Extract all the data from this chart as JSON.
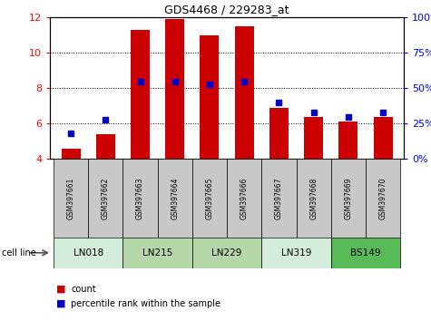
{
  "title": "GDS4468 / 229283_at",
  "samples": [
    "GSM397661",
    "GSM397662",
    "GSM397663",
    "GSM397664",
    "GSM397665",
    "GSM397666",
    "GSM397667",
    "GSM397668",
    "GSM397669",
    "GSM397670"
  ],
  "count_values": [
    4.6,
    5.4,
    11.3,
    11.9,
    11.0,
    11.5,
    6.9,
    6.4,
    6.1,
    6.4
  ],
  "percentile_values": [
    18,
    28,
    55,
    55,
    53,
    55,
    40,
    33,
    30,
    33
  ],
  "ylim_left": [
    4,
    12
  ],
  "ylim_right": [
    0,
    100
  ],
  "yticks_left": [
    4,
    6,
    8,
    10,
    12
  ],
  "yticks_right": [
    0,
    25,
    50,
    75,
    100
  ],
  "ytick_labels_right": [
    "0%",
    "25%",
    "50%",
    "75%",
    "100%"
  ],
  "cell_lines": [
    {
      "name": "LN018",
      "start": 0,
      "end": 1,
      "color": "#d4edda"
    },
    {
      "name": "LN215",
      "start": 2,
      "end": 3,
      "color": "#b6d7a8"
    },
    {
      "name": "LN229",
      "start": 4,
      "end": 5,
      "color": "#b6d7a8"
    },
    {
      "name": "LN319",
      "start": 6,
      "end": 7,
      "color": "#d4edda"
    },
    {
      "name": "BS149",
      "start": 8,
      "end": 9,
      "color": "#57bb57"
    }
  ],
  "bar_color": "#cc0000",
  "marker_color": "#0000cc",
  "bar_bottom": 4,
  "tick_label_area_bg": "#c8c8c8",
  "legend_count_label": "count",
  "legend_pct_label": "percentile rank within the sample",
  "cell_line_label": "cell line"
}
